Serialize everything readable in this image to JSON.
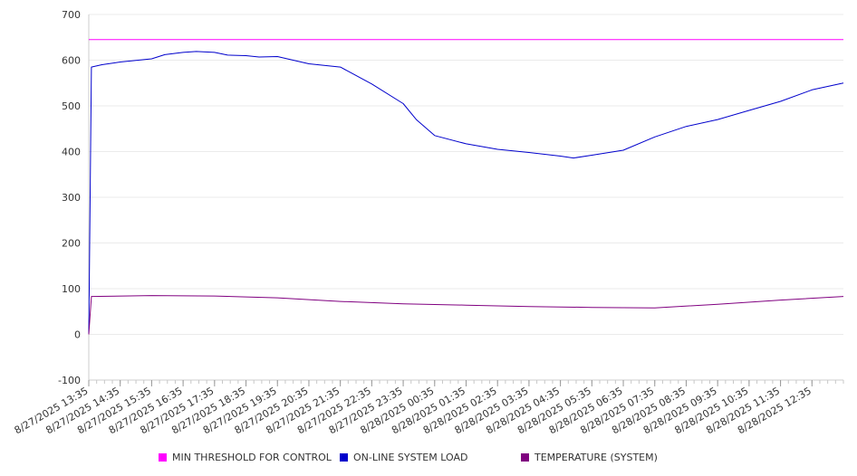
{
  "chart_data": {
    "type": "line",
    "y_ticks": [
      700,
      600,
      500,
      400,
      300,
      200,
      100,
      0,
      -100
    ],
    "ylim": [
      -100,
      700
    ],
    "x_tick_labels": [
      "8/27/2025 13:35",
      "8/27/2025 14:35",
      "8/27/2025 15:35",
      "8/27/2025 16:35",
      "8/27/2025 17:35",
      "8/27/2025 18:35",
      "8/27/2025 19:35",
      "8/27/2025 20:35",
      "8/27/2025 21:35",
      "8/27/2025 22:35",
      "8/27/2025 23:35",
      "8/28/2025 00:35",
      "8/28/2025 01:35",
      "8/28/2025 02:35",
      "8/28/2025 03:35",
      "8/28/2025 04:35",
      "8/28/2025 05:35",
      "8/28/2025 06:35",
      "8/28/2025 07:35",
      "8/28/2025 08:35",
      "8/28/2025 09:35",
      "8/28/2025 10:35",
      "8/28/2025 11:35",
      "8/28/2025 12:35"
    ],
    "x_start": "8/27/2025 13:35",
    "x_end": "8/28/2025 13:35",
    "grid": true,
    "legend_position": "bottom",
    "series": [
      {
        "name": "MIN THRESHOLD FOR CONTROL",
        "color": "#ff00ff",
        "points": [
          [
            "8/27/2025 13:35",
            645
          ],
          [
            "8/28/2025 13:35",
            645
          ]
        ]
      },
      {
        "name": "ON-LINE SYSTEM LOAD",
        "color": "#0000cc",
        "points": [
          [
            "8/27/2025 13:35",
            0
          ],
          [
            "8/27/2025 13:40",
            585
          ],
          [
            "8/27/2025 14:00",
            590
          ],
          [
            "8/27/2025 14:35",
            596
          ],
          [
            "8/27/2025 15:35",
            603
          ],
          [
            "8/27/2025 16:00",
            612
          ],
          [
            "8/27/2025 16:35",
            617
          ],
          [
            "8/27/2025 17:00",
            619
          ],
          [
            "8/27/2025 17:35",
            617
          ],
          [
            "8/27/2025 18:00",
            611
          ],
          [
            "8/27/2025 18:35",
            610
          ],
          [
            "8/27/2025 19:00",
            607
          ],
          [
            "8/27/2025 19:35",
            608
          ],
          [
            "8/27/2025 20:35",
            592
          ],
          [
            "8/27/2025 21:35",
            585
          ],
          [
            "8/27/2025 22:35",
            548
          ],
          [
            "8/27/2025 23:35",
            505
          ],
          [
            "8/28/2025 00:00",
            470
          ],
          [
            "8/28/2025 00:35",
            435
          ],
          [
            "8/28/2025 01:35",
            417
          ],
          [
            "8/28/2025 02:35",
            405
          ],
          [
            "8/28/2025 03:35",
            398
          ],
          [
            "8/28/2025 04:35",
            390
          ],
          [
            "8/28/2025 05:00",
            386
          ],
          [
            "8/28/2025 05:35",
            392
          ],
          [
            "8/28/2025 06:35",
            403
          ],
          [
            "8/28/2025 07:35",
            432
          ],
          [
            "8/28/2025 08:35",
            455
          ],
          [
            "8/28/2025 09:35",
            470
          ],
          [
            "8/28/2025 10:35",
            490
          ],
          [
            "8/28/2025 11:35",
            510
          ],
          [
            "8/28/2025 12:35",
            535
          ],
          [
            "8/28/2025 13:35",
            550
          ]
        ]
      },
      {
        "name": "TEMPERATURE (SYSTEM)",
        "color": "#800080",
        "points": [
          [
            "8/27/2025 13:35",
            0
          ],
          [
            "8/27/2025 13:40",
            83
          ],
          [
            "8/27/2025 15:35",
            85
          ],
          [
            "8/27/2025 17:35",
            84
          ],
          [
            "8/27/2025 19:35",
            80
          ],
          [
            "8/27/2025 21:35",
            72
          ],
          [
            "8/27/2025 23:35",
            67
          ],
          [
            "8/28/2025 01:35",
            64
          ],
          [
            "8/28/2025 03:35",
            61
          ],
          [
            "8/28/2025 05:35",
            59
          ],
          [
            "8/28/2025 07:35",
            58
          ],
          [
            "8/28/2025 09:35",
            66
          ],
          [
            "8/28/2025 11:35",
            75
          ],
          [
            "8/28/2025 13:35",
            83
          ]
        ]
      }
    ]
  }
}
